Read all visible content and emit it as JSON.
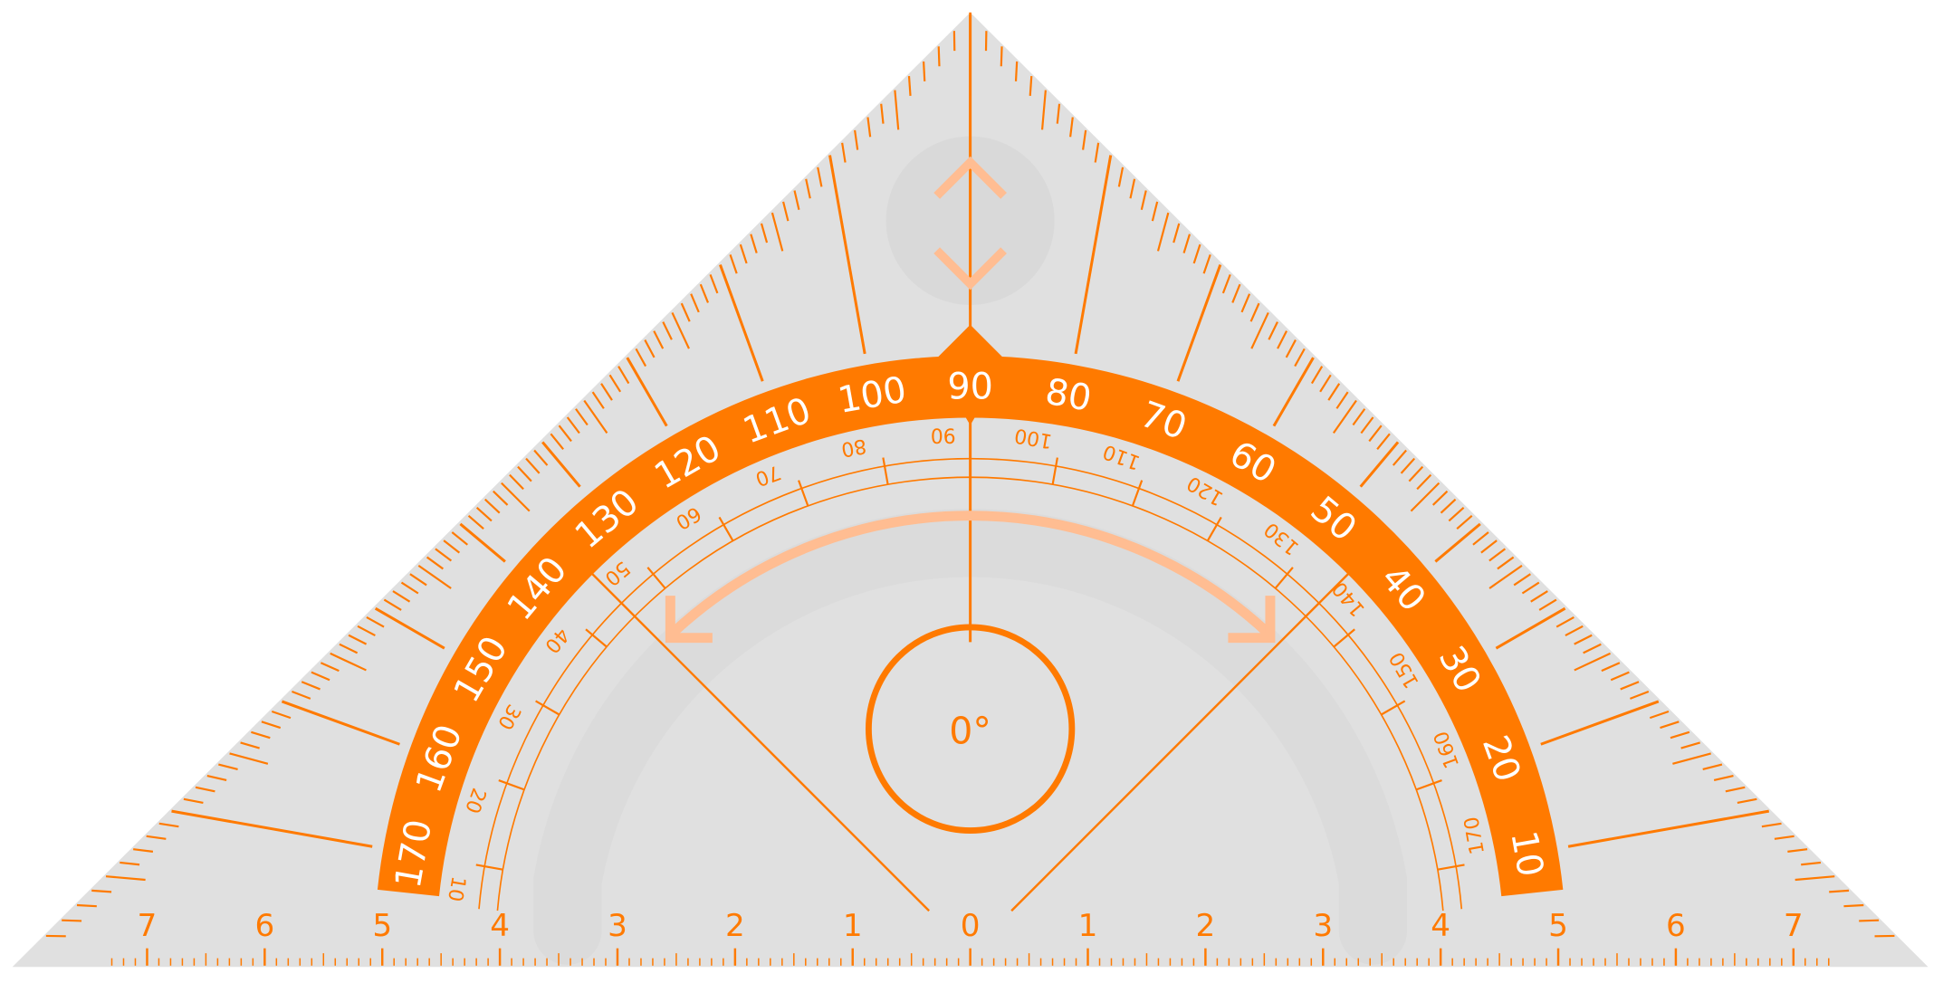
{
  "tool": "set-square-protractor",
  "colors": {
    "accent": "#ff7a00",
    "accent_light": "#ffbd92",
    "body": "#e0e0e0",
    "shadow": "#d9d9d9",
    "label_on_band": "#ffffff"
  },
  "protractor": {
    "outer_labels": [
      "10",
      "20",
      "30",
      "40",
      "50",
      "60",
      "70",
      "80",
      "90",
      "100",
      "110",
      "120",
      "130",
      "140",
      "150",
      "160",
      "170"
    ],
    "inner_labels": [
      "170",
      "160",
      "150",
      "140",
      "130",
      "120",
      "110",
      "100",
      "90",
      "80",
      "70",
      "60",
      "50",
      "40",
      "30",
      "20",
      "10"
    ],
    "center_readout": "0°"
  },
  "ruler": {
    "left_labels": [
      "7",
      "6",
      "5",
      "4",
      "3",
      "2",
      "1"
    ],
    "zero_label": "0",
    "right_labels": [
      "1",
      "2",
      "3",
      "4",
      "5",
      "6",
      "7"
    ]
  },
  "controls": {
    "move_handle_icons": [
      "chevron-up-icon",
      "chevron-down-icon"
    ],
    "rotate_handle_icon": "rotate-arc-arrow-icon"
  }
}
